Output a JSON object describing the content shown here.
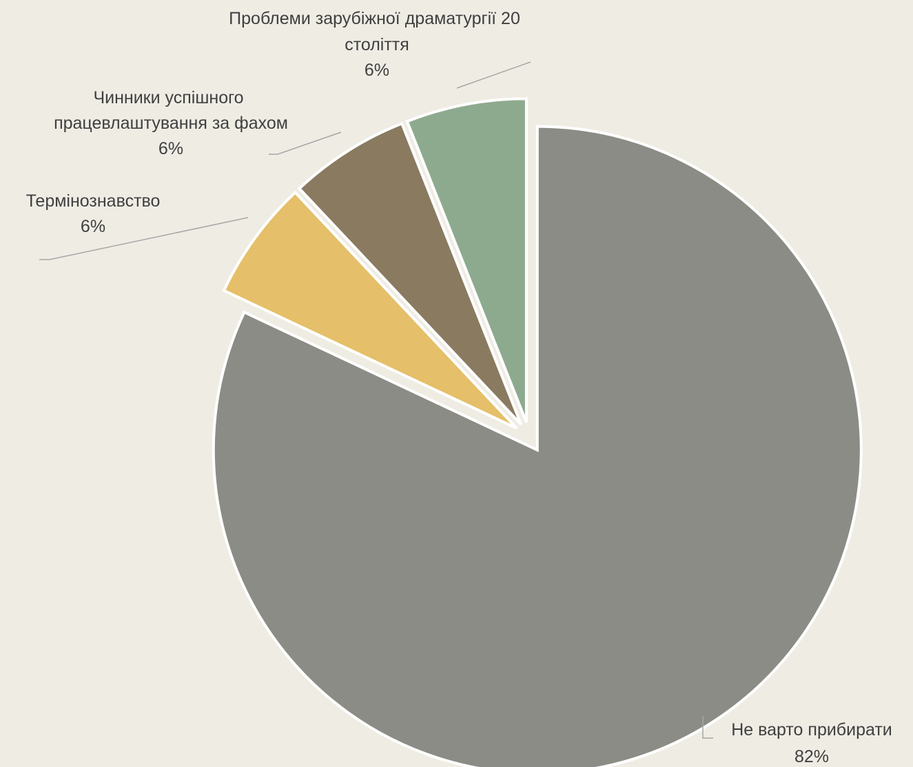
{
  "chart_data": {
    "type": "pie",
    "title": "",
    "slices": [
      {
        "label": "Не варто прибирати",
        "value": 82,
        "value_label": "82%",
        "color": "#8c8c86"
      },
      {
        "label": "Термінознавство",
        "value": 6,
        "value_label": "6%",
        "color": "#e5bf69"
      },
      {
        "label": "Чинники успішного працевлаштування за фахом",
        "value": 6,
        "value_label": "6%",
        "color": "#897a60"
      },
      {
        "label": "Проблеми зарубіжної драматургії 20 століття",
        "value": 6,
        "value_label": "6%",
        "color": "#8eaa8e"
      }
    ],
    "start_angle_deg": 0,
    "direction": "clockwise",
    "exploded": true,
    "data_labels": "category-and-percent"
  }
}
